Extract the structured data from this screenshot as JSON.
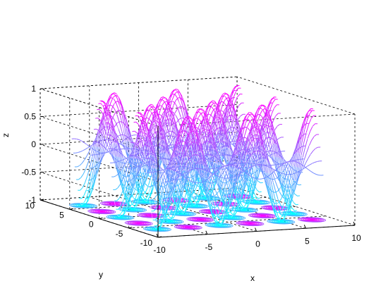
{
  "chart_data": {
    "type": "surface-mesh-with-contour",
    "function": "z = sin(x) * cos(y)",
    "x": {
      "label": "x",
      "lim": [
        -10,
        10
      ],
      "ticks": [
        -10,
        -5,
        0,
        5,
        10
      ]
    },
    "y": {
      "label": "y",
      "lim": [
        -10,
        10
      ],
      "ticks": [
        -10,
        -5,
        0,
        5,
        10
      ]
    },
    "z": {
      "label": "z",
      "lim": [
        -1,
        1
      ],
      "ticks": [
        -1,
        -0.5,
        0,
        0.5,
        1
      ]
    },
    "surface_domain": {
      "x": [
        -8,
        8
      ],
      "y": [
        -8,
        8
      ]
    },
    "mesh_step": 0.25,
    "colormap": {
      "low": "#00ffff",
      "high": "#ff00ff"
    },
    "contour_levels": 8,
    "grid": true,
    "box": true,
    "tick_labels": {
      "z": [
        "-1",
        "-0.5",
        "0",
        "0.5",
        "1"
      ],
      "y": [
        "-10",
        "-5",
        "0",
        "5",
        "10"
      ],
      "x": [
        "-10",
        "-5",
        "0",
        "5",
        "10"
      ]
    }
  }
}
